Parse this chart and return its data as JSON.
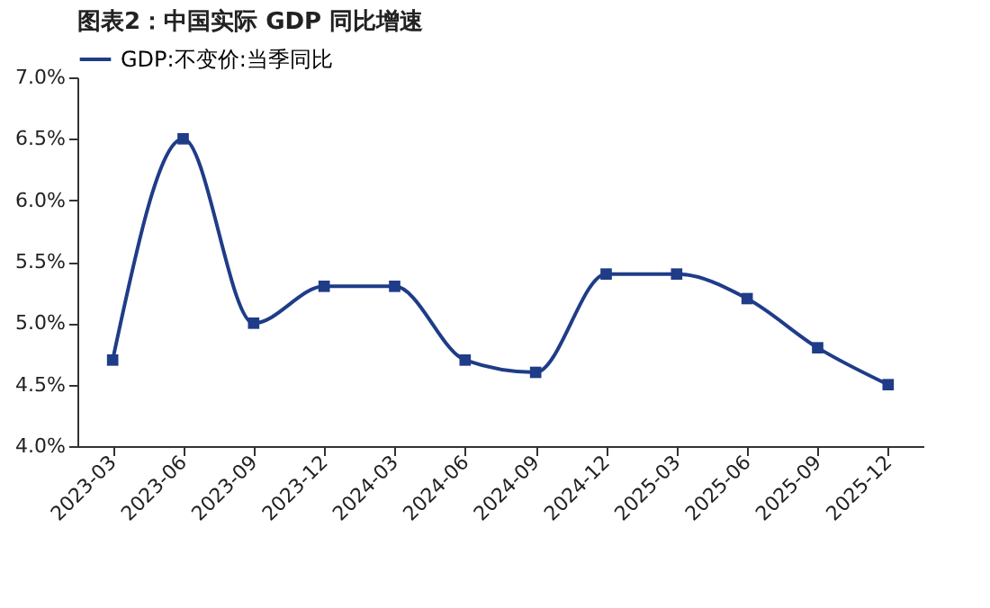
{
  "chart_data": {
    "type": "line",
    "title": "图表2：中国实际 GDP 同比增速",
    "categories": [
      "2023-03",
      "2023-06",
      "2023-09",
      "2023-12",
      "2024-03",
      "2024-06",
      "2024-09",
      "2024-12",
      "2025-03",
      "2025-06",
      "2025-09",
      "2025-12"
    ],
    "series": [
      {
        "name": "GDP:不变价:当季同比",
        "color": "#1f3c88",
        "values": [
          4.7,
          6.5,
          5.0,
          5.3,
          5.3,
          4.7,
          4.6,
          5.4,
          5.4,
          5.2,
          4.8,
          4.5
        ]
      }
    ],
    "ylim": [
      4.0,
      7.0
    ],
    "yticks": [
      {
        "value": 4.0,
        "label": "4.0%"
      },
      {
        "value": 4.5,
        "label": "4.5%"
      },
      {
        "value": 5.0,
        "label": "5.0%"
      },
      {
        "value": 5.5,
        "label": "5.5%"
      },
      {
        "value": 6.0,
        "label": "6.0%"
      },
      {
        "value": 6.5,
        "label": "6.5%"
      },
      {
        "value": 7.0,
        "label": "7.0%"
      }
    ],
    "marker": "square",
    "line_style": "solid",
    "legend": "top",
    "grid": false
  }
}
